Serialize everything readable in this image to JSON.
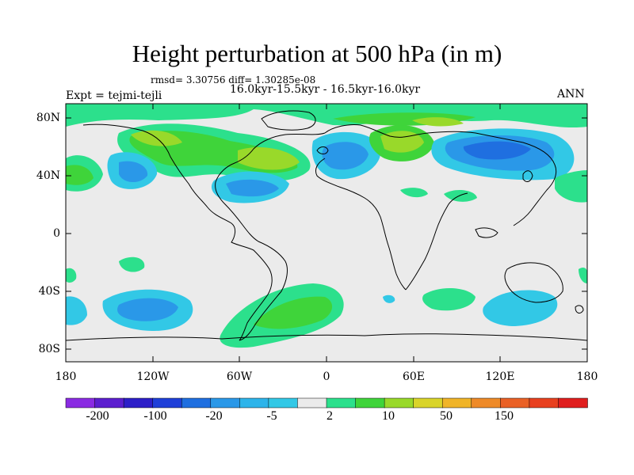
{
  "title": "Height perturbation at 500 hPa (in m)",
  "stats_line": "rmsd= 3.30756 diff= 1.30285e-08",
  "experiment": "Expt = tejmi-tejli",
  "period": "16.0kyr-15.5kyr - 16.5kyr-16.0kyr",
  "season": "ANN",
  "map": {
    "projection": "cylindrical equidistant",
    "lon_range": [
      -180,
      180
    ],
    "lat_range": [
      -90,
      90
    ],
    "lat_ticks": [
      "80N",
      "40N",
      "0",
      "40S",
      "80S"
    ],
    "lon_ticks": [
      "180",
      "120W",
      "60W",
      "0",
      "60E",
      "120E",
      "180"
    ]
  },
  "colorbar": {
    "labels": [
      "-200",
      "-100",
      "-20",
      "-5",
      "2",
      "10",
      "50",
      "150"
    ],
    "colors": [
      "#8a2be2",
      "#5c1fcf",
      "#2d1fc8",
      "#1f3fd8",
      "#1f6fe0",
      "#2a98e8",
      "#2db4ea",
      "#32c8e6",
      "#ebebeb",
      "#2ce08c",
      "#3fd43a",
      "#99d92a",
      "#d9d42a",
      "#f0b428",
      "#ee8a28",
      "#ea6126",
      "#e8401f",
      "#e01e1e"
    ]
  },
  "colors": {
    "neutral": "#ebebeb",
    "light_blue": "#32c8e6",
    "mid_blue": "#2a98e8",
    "blue": "#1f6fe0",
    "light_green": "#2ce08c",
    "green": "#3fd43a",
    "yellow_green": "#99d92a"
  }
}
